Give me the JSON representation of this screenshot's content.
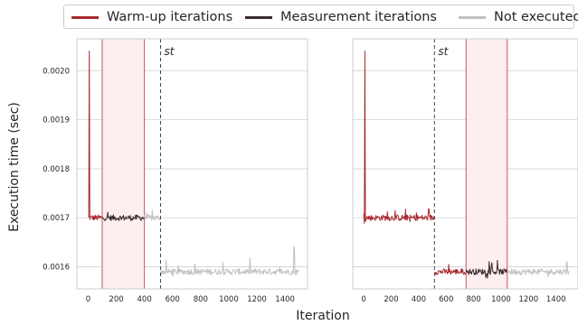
{
  "legend": {
    "items": [
      {
        "label": "Warm-up iterations",
        "color": "#a8292d"
      },
      {
        "label": "Measurement iterations",
        "color": "#3b2a2c"
      },
      {
        "label": "Not executed",
        "color": "#c0c0c0"
      }
    ]
  },
  "chart_data": [
    {
      "type": "line",
      "panel": "left",
      "xlabel": "Iteration",
      "ylabel": "Execution time (sec)",
      "xlim": [
        -80,
        1560
      ],
      "ylim": [
        0.001555,
        0.002065
      ],
      "xticks": [
        0,
        200,
        400,
        600,
        800,
        1000,
        1200,
        1400
      ],
      "yticks": [
        0.0016,
        0.0017,
        0.0018,
        0.0019,
        0.002
      ],
      "ytick_labels": [
        "0.0016",
        "0.0017",
        "0.0018",
        "0.0019",
        "0.0020"
      ],
      "grid": "horizontal",
      "st_line": {
        "x": 515,
        "label": "st"
      },
      "measurement_window": [
        100,
        400
      ],
      "segments": [
        {
          "series": "Warm-up iterations",
          "x_start": 0,
          "x_end": 100,
          "level": 0.0017,
          "spike": {
            "x": 8,
            "y": 0.00204
          }
        },
        {
          "series": "Measurement iterations",
          "x_start": 100,
          "x_end": 400,
          "level": 0.0017
        },
        {
          "series": "Not executed",
          "x_start": 400,
          "x_end": 515,
          "level": 0.0017
        },
        {
          "series": "Not executed",
          "x_start": 515,
          "x_end": 1500,
          "level": 0.00159,
          "spike": {
            "x": 1465,
            "y": 0.00164
          }
        }
      ]
    },
    {
      "type": "line",
      "panel": "right",
      "xlabel": "Iteration",
      "ylabel": "Execution time (sec)",
      "xlim": [
        -80,
        1560
      ],
      "ylim": [
        0.001555,
        0.002065
      ],
      "xticks": [
        0,
        200,
        400,
        600,
        800,
        1000,
        1200,
        1400
      ],
      "grid": "horizontal",
      "st_line": {
        "x": 515,
        "label": "st"
      },
      "measurement_window": [
        745,
        1045
      ],
      "segments": [
        {
          "series": "Warm-up iterations",
          "x_start": 0,
          "x_end": 515,
          "level": 0.0017,
          "spike": {
            "x": 8,
            "y": 0.00204
          }
        },
        {
          "series": "Warm-up iterations",
          "x_start": 515,
          "x_end": 745,
          "level": 0.00159
        },
        {
          "series": "Measurement iterations",
          "x_start": 745,
          "x_end": 1045,
          "level": 0.00159
        },
        {
          "series": "Not executed",
          "x_start": 1045,
          "x_end": 1500,
          "level": 0.00159,
          "spike": {
            "x": 1480,
            "y": 0.00161
          }
        }
      ]
    }
  ]
}
